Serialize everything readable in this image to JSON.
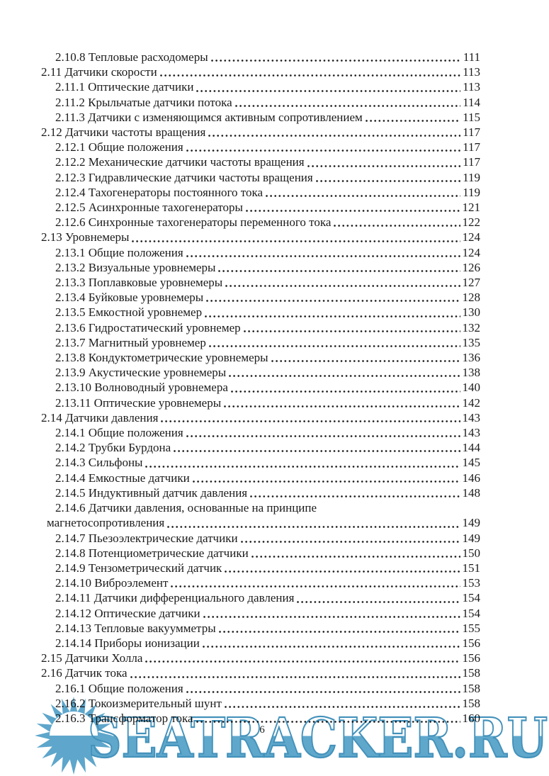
{
  "page": {
    "number_label": "6"
  },
  "toc": {
    "entries": [
      {
        "label": "2.10.8 Тепловые расходомеры",
        "page": "111",
        "level": "sub"
      },
      {
        "label": "2.11 Датчики скорости",
        "page": "113",
        "level": "sec"
      },
      {
        "label": "2.11.1 Оптические датчики",
        "page": "113",
        "level": "sub"
      },
      {
        "label": "2.11.2 Крыльчатые датчики потока",
        "page": "114",
        "level": "sub"
      },
      {
        "label": "2.11.3 Датчики с изменяющимся активным сопротивлением",
        "page": "115",
        "level": "sub"
      },
      {
        "label": "2.12 Датчики частоты вращения",
        "page": "117",
        "level": "sec"
      },
      {
        "label": "2.12.1 Общие положения",
        "page": "117",
        "level": "sub"
      },
      {
        "label": "2.12.2 Механические датчики частоты вращения",
        "page": "117",
        "level": "sub"
      },
      {
        "label": "2.12.3 Гидравлические датчики частоты вращения",
        "page": "119",
        "level": "sub"
      },
      {
        "label": "2.12.4 Тахогенераторы постоянного тока",
        "page": "119",
        "level": "sub"
      },
      {
        "label": "2.12.5 Асинхронные тахогенераторы",
        "page": "121",
        "level": "sub"
      },
      {
        "label": "2.12.6 Синхронные тахогенераторы переменного тока",
        "page": "122",
        "level": "sub"
      },
      {
        "label": "2.13 Уровнемеры",
        "page": "124",
        "level": "sec"
      },
      {
        "label": "2.13.1 Общие положения",
        "page": "124",
        "level": "sub"
      },
      {
        "label": "2.13.2 Визуальные уровнемеры",
        "page": "126",
        "level": "sub"
      },
      {
        "label": "2.13.3 Поплавковые уровнемеры",
        "page": "127",
        "level": "sub"
      },
      {
        "label": "2.13.4 Буйковые уровнемеры",
        "page": "128",
        "level": "sub"
      },
      {
        "label": "2.13.5 Емкостной уровнемер",
        "page": "130",
        "level": "sub"
      },
      {
        "label": "2.13.6 Гидростатический уровнемер",
        "page": "132",
        "level": "sub"
      },
      {
        "label": "2.13.7 Магнитный уровнемер",
        "page": "135",
        "level": "sub"
      },
      {
        "label": "2.13.8 Кондуктометрические уровнемеры",
        "page": "136",
        "level": "sub"
      },
      {
        "label": "2.13.9 Акустические уровнемеры",
        "page": "138",
        "level": "sub"
      },
      {
        "label": "2.13.10 Волноводный уровнемера",
        "page": "140",
        "level": "sub"
      },
      {
        "label": "2.13.11 Оптические уровнемеры",
        "page": "142",
        "level": "sub"
      },
      {
        "label": "2.14 Датчики давления",
        "page": "143",
        "level": "sec"
      },
      {
        "label": "2.14.1 Общие положения",
        "page": "143",
        "level": "sub"
      },
      {
        "label": "2.14.2 Трубки Бурдона",
        "page": "144",
        "level": "sub"
      },
      {
        "label": "2.14.3 Сильфоны",
        "page": "145",
        "level": "sub"
      },
      {
        "label": "2.14.4 Емкостные датчики",
        "page": "146",
        "level": "sub"
      },
      {
        "label": "2.14.5 Индуктивный датчик давления",
        "page": "148",
        "level": "sub"
      },
      {
        "label": "2.14.6 Датчики давления, основанные на принципе",
        "page": "",
        "level": "sub"
      },
      {
        "label": "магнетосопротивления",
        "page": "149",
        "level": "cont"
      },
      {
        "label": "2.14.7 Пьезоэлектрические датчики",
        "page": "149",
        "level": "sub"
      },
      {
        "label": "2.14.8 Потенциометрические датчики",
        "page": "150",
        "level": "sub"
      },
      {
        "label": "2.14.9 Тензометрический датчик",
        "page": "151",
        "level": "sub"
      },
      {
        "label": "2.14.10 Виброэлемент",
        "page": "153",
        "level": "sub"
      },
      {
        "label": "2.14.11 Датчики дифференциального давления",
        "page": "154",
        "level": "sub"
      },
      {
        "label": "2.14.12 Оптические датчики",
        "page": "154",
        "level": "sub"
      },
      {
        "label": "2.14.13 Тепловые вакуумметры",
        "page": "155",
        "level": "sub"
      },
      {
        "label": "2.14.14 Приборы ионизации",
        "page": "156",
        "level": "sub"
      },
      {
        "label": "2.15 Датчики Холла",
        "page": "156",
        "level": "sec"
      },
      {
        "label": "2.16 Датчик тока",
        "page": "158",
        "level": "sec"
      },
      {
        "label": "2.16.1 Общие положения",
        "page": "158",
        "level": "sub"
      },
      {
        "label": "2.16.2 Токоизмерительный шунт",
        "page": "158",
        "level": "sub"
      },
      {
        "label": "2.16.3 Трансформатор тока",
        "page": "160",
        "level": "sub"
      }
    ]
  },
  "watermark": {
    "text": "SEATRACKER.RU",
    "fill_color": "#5fa8cc",
    "stroke_color": "#4492bb",
    "sun_color": "#5ea6cb"
  }
}
